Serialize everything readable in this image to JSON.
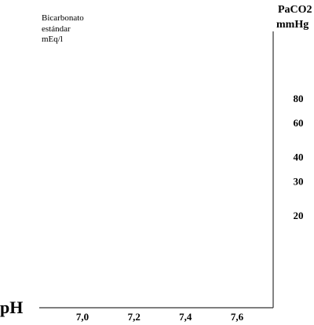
{
  "chart_data": {
    "type": "line",
    "title": "",
    "x_axis_label": "pH",
    "x_ticks": [
      "7,0",
      "7,2",
      "7,4",
      "7,6"
    ],
    "x_tick_values": [
      7.0,
      7.2,
      7.4,
      7.6
    ],
    "left_annotation": [
      "Bicarbonato",
      "estándar",
      "mEq/l"
    ],
    "right_axis_label": [
      "PaCO2",
      "mmHg"
    ],
    "right_ticks": [
      "80",
      "60",
      "40",
      "30",
      "20"
    ],
    "right_tick_values": [
      80,
      60,
      40,
      30,
      20
    ],
    "right_scale": "log",
    "series": [],
    "grid": false,
    "legend": "none",
    "axis_color": "#333333"
  }
}
